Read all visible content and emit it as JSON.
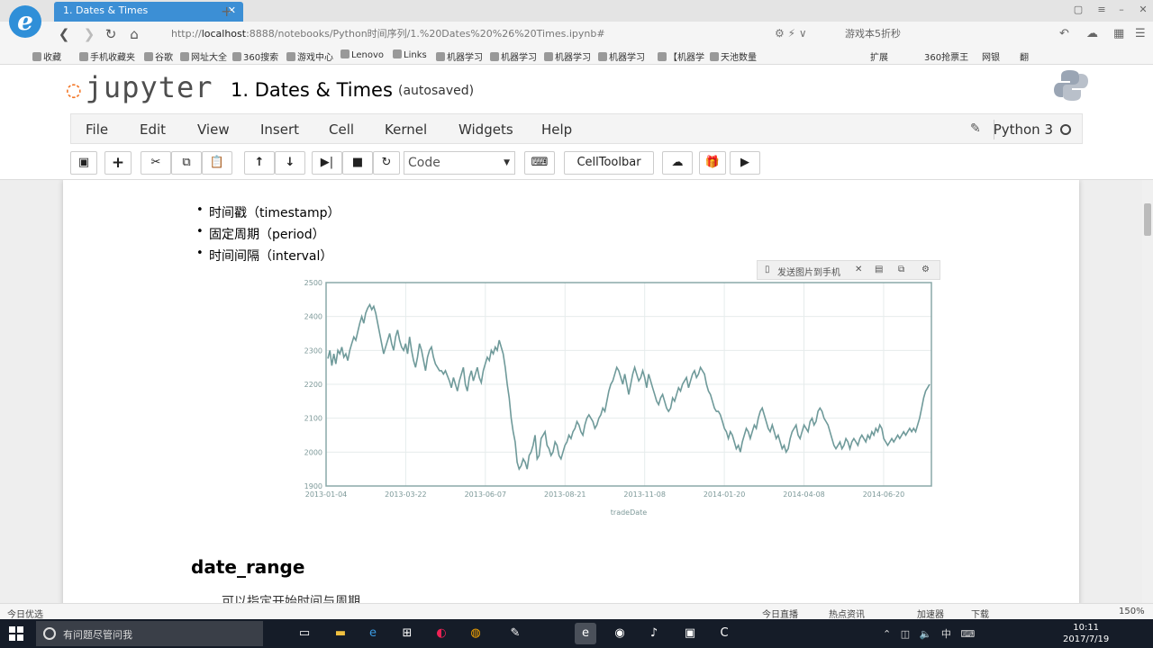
{
  "browser": {
    "tab_title": "1. Dates & Times",
    "url_prefix": "http://",
    "url_host": "localhost",
    "url_rest": ":8888/notebooks/Python时间序列/1.%20Dates%20%26%20Times.ipynb#",
    "search_text": "游戏本5折秒",
    "bookmarks": [
      "收藏",
      "手机收藏夹",
      "谷歌",
      "网址大全",
      "360搜索",
      "游戏中心",
      "Lenovo",
      "Links",
      "机器学习",
      "机器学习",
      "机器学习",
      "机器学习",
      "【机器学",
      "天池数量"
    ],
    "right_tools": [
      "扩展",
      "360抢票王",
      "网银",
      "翻"
    ]
  },
  "jupyter": {
    "logo_text": "jupyter",
    "notebook_title": "1. Dates & Times",
    "autosave_status": "(autosaved)",
    "menu": [
      "File",
      "Edit",
      "View",
      "Insert",
      "Cell",
      "Kernel",
      "Widgets",
      "Help"
    ],
    "kernel_name": "Python 3",
    "cell_type": "Code",
    "celltoolbar_label": "CellToolbar"
  },
  "notebook": {
    "bullets": [
      "时间戳（timestamp）",
      "固定周期（period）",
      "时间间隔（interval）"
    ],
    "float_toolbar_label": "发送图片到手机",
    "section_heading": "date_range",
    "partial_text": "可以指定开始时间与周期"
  },
  "chart_data": {
    "type": "line",
    "xlabel": "tradeDate",
    "ylabel": "",
    "ylim": [
      1900,
      2500
    ],
    "y_ticks": [
      1900,
      2000,
      2100,
      2200,
      2300,
      2400,
      2500
    ],
    "x_tick_labels": [
      "2013-01-04",
      "2013-03-22",
      "2013-06-07",
      "2013-08-21",
      "2013-11-08",
      "2014-01-20",
      "2014-04-08",
      "2014-06-20"
    ],
    "grid": true,
    "line_color": "#6f9a9a",
    "series": [
      {
        "values": [
          2276,
          2300,
          2255,
          2290,
          2260,
          2300,
          2290,
          2310,
          2280,
          2290,
          2270,
          2300,
          2320,
          2340,
          2330,
          2355,
          2380,
          2400,
          2380,
          2410,
          2425,
          2435,
          2420,
          2430,
          2410,
          2380,
          2350,
          2320,
          2290,
          2310,
          2330,
          2350,
          2320,
          2300,
          2340,
          2360,
          2330,
          2310,
          2300,
          2320,
          2290,
          2340,
          2300,
          2270,
          2250,
          2280,
          2320,
          2300,
          2270,
          2240,
          2280,
          2300,
          2310,
          2280,
          2260,
          2250,
          2240,
          2240,
          2230,
          2240,
          2225,
          2210,
          2190,
          2220,
          2200,
          2180,
          2210,
          2230,
          2250,
          2200,
          2180,
          2220,
          2240,
          2210,
          2230,
          2250,
          2220,
          2205,
          2240,
          2260,
          2280,
          2270,
          2300,
          2290,
          2310,
          2300,
          2330,
          2310,
          2290,
          2250,
          2200,
          2160,
          2100,
          2060,
          2030,
          1970,
          1950,
          1960,
          1980,
          1970,
          1950,
          1990,
          2000,
          2020,
          2050,
          1980,
          1990,
          2040,
          2050,
          2060,
          2020,
          2010,
          1990,
          2000,
          2030,
          2020,
          1990,
          1980,
          2000,
          2020,
          2030,
          2050,
          2040,
          2060,
          2070,
          2090,
          2080,
          2060,
          2050,
          2080,
          2100,
          2110,
          2100,
          2090,
          2070,
          2080,
          2100,
          2110,
          2130,
          2120,
          2150,
          2180,
          2200,
          2210,
          2230,
          2250,
          2240,
          2220,
          2200,
          2230,
          2200,
          2170,
          2200,
          2230,
          2250,
          2230,
          2210,
          2220,
          2240,
          2220,
          2190,
          2230,
          2210,
          2190,
          2170,
          2150,
          2140,
          2160,
          2170,
          2150,
          2130,
          2120,
          2130,
          2160,
          2150,
          2170,
          2190,
          2180,
          2200,
          2210,
          2220,
          2190,
          2210,
          2230,
          2240,
          2220,
          2230,
          2250,
          2240,
          2230,
          2200,
          2180,
          2170,
          2150,
          2130,
          2120,
          2120,
          2110,
          2090,
          2070,
          2060,
          2040,
          2060,
          2050,
          2030,
          2010,
          2020,
          2000,
          2030,
          2050,
          2070,
          2060,
          2040,
          2060,
          2080,
          2070,
          2100,
          2120,
          2130,
          2110,
          2090,
          2070,
          2060,
          2080,
          2060,
          2040,
          2050,
          2030,
          2010,
          2020,
          2000,
          2010,
          2040,
          2060,
          2070,
          2080,
          2050,
          2040,
          2060,
          2080,
          2070,
          2060,
          2090,
          2100,
          2080,
          2090,
          2120,
          2130,
          2120,
          2100,
          2090,
          2080,
          2060,
          2040,
          2020,
          2010,
          2020,
          2030,
          2010,
          2020,
          2040,
          2030,
          2010,
          2030,
          2040,
          2030,
          2020,
          2040,
          2050,
          2040,
          2030,
          2050,
          2040,
          2060,
          2050,
          2070,
          2060,
          2080,
          2070,
          2040,
          2030,
          2020,
          2030,
          2040,
          2030,
          2040,
          2050,
          2040,
          2050,
          2060,
          2050,
          2060,
          2070,
          2060,
          2070,
          2060,
          2080,
          2100,
          2130,
          2160,
          2180,
          2190,
          2200
        ]
      }
    ]
  },
  "status_bar": {
    "left": "今日优选",
    "items": [
      "今日直播",
      "热点资讯",
      "加速器",
      "下载",
      "150%"
    ]
  },
  "taskbar": {
    "search_placeholder": "有问题尽管问我",
    "ime": "中",
    "time": "10:11",
    "date": "2017/7/19"
  }
}
